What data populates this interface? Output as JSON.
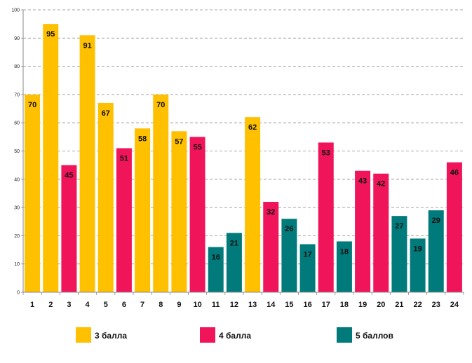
{
  "chart_data": {
    "type": "bar",
    "title": "",
    "xlabel": "",
    "ylabel": "",
    "ylim": [
      0,
      100
    ],
    "yticks": [
      0,
      10,
      20,
      30,
      40,
      50,
      60,
      70,
      80,
      90,
      100
    ],
    "grid": true,
    "categories": [
      "1",
      "2",
      "3",
      "4",
      "5",
      "6",
      "7",
      "8",
      "9",
      "10",
      "11",
      "12",
      "13",
      "14",
      "15",
      "16",
      "17",
      "18",
      "19",
      "20",
      "21",
      "22",
      "23",
      "24"
    ],
    "values": [
      70,
      95,
      45,
      91,
      67,
      51,
      58,
      70,
      57,
      55,
      16,
      21,
      62,
      32,
      26,
      17,
      53,
      18,
      43,
      42,
      27,
      19,
      29,
      46
    ],
    "groups": [
      "g3",
      "g3",
      "g4",
      "g3",
      "g3",
      "g4",
      "g3",
      "g3",
      "g3",
      "g4",
      "g5",
      "g5",
      "g3",
      "g4",
      "g5",
      "g5",
      "g4",
      "g5",
      "g4",
      "g4",
      "g5",
      "g5",
      "g5",
      "g4"
    ],
    "series": [
      {
        "key": "g3",
        "name": "3 балла",
        "color": "#FFC000"
      },
      {
        "key": "g4",
        "name": "4 балла",
        "color": "#F0145A"
      },
      {
        "key": "g5",
        "name": "5 баллов",
        "color": "#007A7A"
      }
    ],
    "legend_position": "bottom"
  }
}
